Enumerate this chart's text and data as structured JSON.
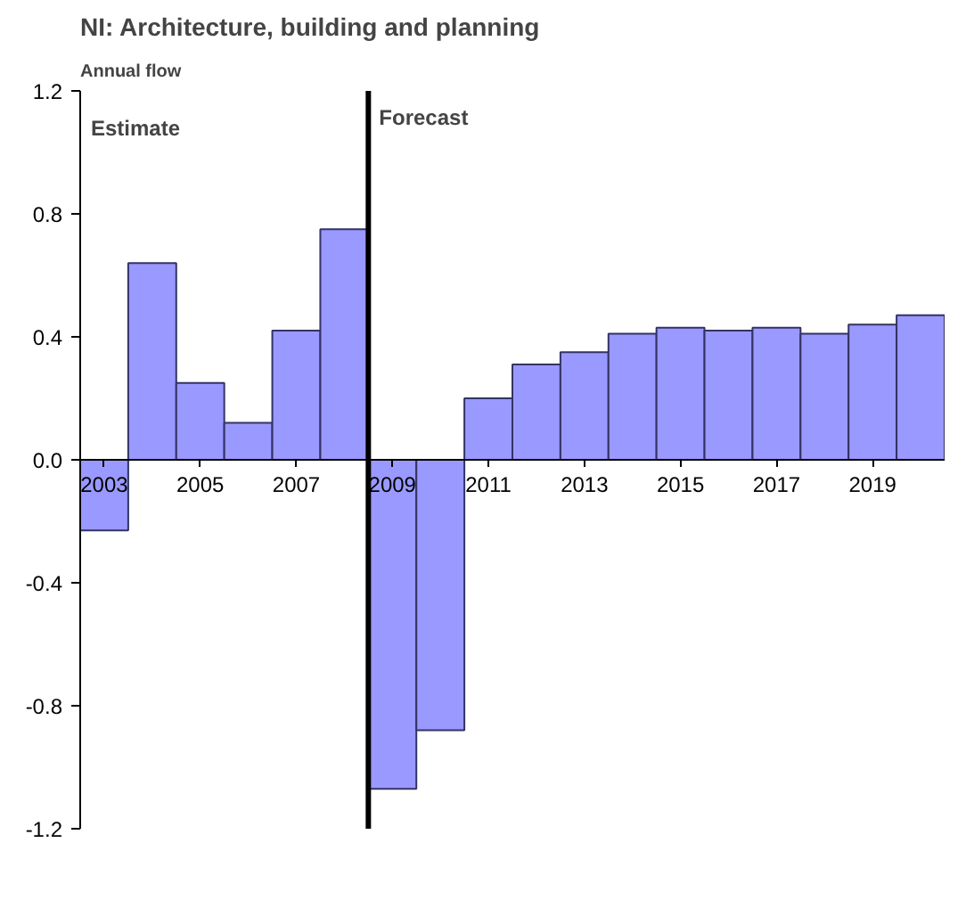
{
  "chart_data": {
    "type": "bar",
    "title": "NI: Architecture, building and planning",
    "ylabel": "Annual flow",
    "x": [
      2003,
      2004,
      2005,
      2006,
      2007,
      2008,
      2009,
      2010,
      2011,
      2012,
      2013,
      2014,
      2015,
      2016,
      2017,
      2018,
      2019,
      2020
    ],
    "values": [
      -0.23,
      0.64,
      0.25,
      0.12,
      0.42,
      0.75,
      -1.07,
      -0.88,
      0.2,
      0.31,
      0.35,
      0.41,
      0.43,
      0.42,
      0.43,
      0.41,
      0.44,
      0.47
    ],
    "color": "#9999ff",
    "xlim": [
      2002.5,
      2020.5
    ],
    "xticks": [
      2003,
      2005,
      2007,
      2009,
      2011,
      2013,
      2015,
      2017,
      2019
    ],
    "ylim": [
      -1.2,
      1.2
    ],
    "yticks": [
      {
        "value": -1.2,
        "label": "-1.2"
      },
      {
        "value": -0.8,
        "label": "-0.8"
      },
      {
        "value": -0.4,
        "label": "-0.4"
      },
      {
        "value": 0,
        "label": "0.0"
      },
      {
        "value": 0.4,
        "label": "0.4"
      },
      {
        "value": 0.8,
        "label": "0.8"
      },
      {
        "value": 1.2,
        "label": "1.2"
      }
    ],
    "ref_lines": [
      {
        "axis": "x",
        "value": 2008.5,
        "color": "#000000"
      }
    ],
    "annotations": [
      "Estimate",
      "Forecast"
    ],
    "grid": false
  }
}
